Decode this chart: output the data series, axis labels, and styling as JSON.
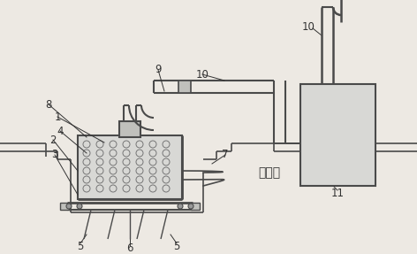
{
  "bg_color": "#ede9e3",
  "line_color": "#4a4a4a",
  "label_color": "#333333",
  "figsize": [
    4.72,
    2.87
  ],
  "dpi": 100,
  "xlim": [
    0,
    472
  ],
  "ylim": [
    287,
    0
  ]
}
